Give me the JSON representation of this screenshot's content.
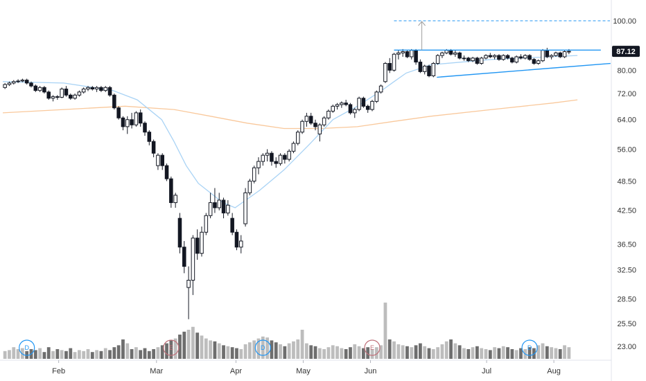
{
  "chart_data": {
    "type": "candlestick",
    "y_axis": {
      "scale": "log",
      "ticks": [
        "100.00",
        "80.00",
        "72.00",
        "64.00",
        "56.00",
        "48.50",
        "42.50",
        "36.50",
        "32.50",
        "28.50",
        "25.50",
        "23.00"
      ],
      "tick_values": [
        100,
        80,
        72,
        64,
        56,
        48.5,
        42.5,
        36.5,
        32.5,
        28.5,
        25.5,
        23
      ],
      "range": [
        22,
        108
      ]
    },
    "x_axis": {
      "months": [
        "Feb",
        "Mar",
        "Apr",
        "May",
        "Jun",
        "Jul",
        "Aug"
      ],
      "month_positions": [
        13,
        29,
        42,
        53,
        64,
        83,
        94
      ]
    },
    "last_price": {
      "label": "87.12",
      "value": 87.12,
      "color": "#131722"
    },
    "target_line": {
      "value": 100,
      "color": "#2196F3"
    },
    "resistance_line": {
      "value": 87.6,
      "from": 64,
      "to": 101,
      "color": "#2196F3"
    },
    "support_line": {
      "from_value": 77.5,
      "to_value": 82.5,
      "from": 71,
      "to": 101,
      "color": "#2196F3"
    },
    "projection_arrow": {
      "x": 69,
      "from_value": 87.6,
      "to_value": 100
    },
    "sma_short": {
      "color": "#A9D3F5",
      "points": [
        [
          0,
          76
        ],
        [
          10,
          75.5
        ],
        [
          18,
          73
        ],
        [
          22,
          70
        ],
        [
          26,
          64
        ],
        [
          28,
          58
        ],
        [
          30,
          52
        ],
        [
          32,
          48
        ],
        [
          36,
          44
        ],
        [
          38,
          43
        ],
        [
          42,
          46.5
        ],
        [
          46,
          51
        ],
        [
          50,
          57
        ],
        [
          54,
          64
        ],
        [
          58,
          68
        ],
        [
          62,
          73
        ],
        [
          64,
          76
        ],
        [
          66,
          79
        ],
        [
          70,
          82
        ],
        [
          80,
          84
        ],
        [
          94,
          85.5
        ]
      ]
    },
    "sma_long": {
      "color": "#F9C89B",
      "points": [
        [
          0,
          66
        ],
        [
          10,
          67
        ],
        [
          20,
          68
        ],
        [
          28,
          67
        ],
        [
          34,
          65
        ],
        [
          40,
          63
        ],
        [
          46,
          61.5
        ],
        [
          52,
          61.5
        ],
        [
          58,
          62
        ],
        [
          64,
          63.5
        ],
        [
          70,
          65
        ],
        [
          80,
          67
        ],
        [
          90,
          69
        ],
        [
          94,
          70
        ]
      ]
    },
    "candles": [
      {
        "o": 74,
        "h": 75.5,
        "l": 73.5,
        "c": 75
      },
      {
        "o": 75,
        "h": 76,
        "l": 74.5,
        "c": 75.5
      },
      {
        "o": 75.5,
        "h": 76.5,
        "l": 75,
        "c": 76
      },
      {
        "o": 76,
        "h": 76.8,
        "l": 75.5,
        "c": 76.2
      },
      {
        "o": 76.2,
        "h": 77,
        "l": 75.8,
        "c": 76.5
      },
      {
        "o": 76.5,
        "h": 77,
        "l": 75,
        "c": 75.5
      },
      {
        "o": 75.5,
        "h": 76,
        "l": 74,
        "c": 74.5
      },
      {
        "o": 74.5,
        "h": 75,
        "l": 72.5,
        "c": 73
      },
      {
        "o": 73,
        "h": 74.5,
        "l": 72.5,
        "c": 74
      },
      {
        "o": 74,
        "h": 74.5,
        "l": 72,
        "c": 72.5
      },
      {
        "o": 72.5,
        "h": 73,
        "l": 70,
        "c": 70.5
      },
      {
        "o": 70.5,
        "h": 71.5,
        "l": 69.5,
        "c": 71
      },
      {
        "o": 71,
        "h": 71.5,
        "l": 70,
        "c": 70.8
      },
      {
        "o": 70.8,
        "h": 74,
        "l": 70.5,
        "c": 73.5
      },
      {
        "o": 73.5,
        "h": 74.5,
        "l": 71,
        "c": 71.5
      },
      {
        "o": 71.5,
        "h": 72,
        "l": 70,
        "c": 70.5
      },
      {
        "o": 70.5,
        "h": 72,
        "l": 70,
        "c": 71.5
      },
      {
        "o": 71.5,
        "h": 73,
        "l": 71,
        "c": 72.5
      },
      {
        "o": 72.5,
        "h": 74,
        "l": 72,
        "c": 73.5
      },
      {
        "o": 73.5,
        "h": 74.5,
        "l": 72.8,
        "c": 74
      },
      {
        "o": 74,
        "h": 74.5,
        "l": 73,
        "c": 73.5
      },
      {
        "o": 73.5,
        "h": 74.5,
        "l": 72.5,
        "c": 74
      },
      {
        "o": 74,
        "h": 74.5,
        "l": 72.5,
        "c": 73
      },
      {
        "o": 73,
        "h": 74.5,
        "l": 72.5,
        "c": 74
      },
      {
        "o": 74,
        "h": 74.5,
        "l": 71,
        "c": 71.5
      },
      {
        "o": 71.5,
        "h": 72,
        "l": 67,
        "c": 67.5
      },
      {
        "o": 67.5,
        "h": 68,
        "l": 64,
        "c": 64.5
      },
      {
        "o": 64.5,
        "h": 65,
        "l": 61,
        "c": 62
      },
      {
        "o": 62,
        "h": 65,
        "l": 60,
        "c": 64
      },
      {
        "o": 64,
        "h": 66,
        "l": 61.5,
        "c": 62.5
      },
      {
        "o": 62.5,
        "h": 66.5,
        "l": 62,
        "c": 66
      },
      {
        "o": 66,
        "h": 67,
        "l": 62,
        "c": 63
      },
      {
        "o": 63,
        "h": 63.5,
        "l": 59.5,
        "c": 60.5
      },
      {
        "o": 60.5,
        "h": 61,
        "l": 57,
        "c": 58
      },
      {
        "o": 58,
        "h": 58.5,
        "l": 54,
        "c": 55
      },
      {
        "o": 52,
        "h": 55,
        "l": 51,
        "c": 54.5
      },
      {
        "o": 54.5,
        "h": 55,
        "l": 51,
        "c": 52
      },
      {
        "o": 52,
        "h": 52.5,
        "l": 48.5,
        "c": 49
      },
      {
        "o": 49,
        "h": 49.5,
        "l": 43,
        "c": 44
      },
      {
        "o": 44,
        "h": 46,
        "l": 43,
        "c": 45.5
      },
      {
        "o": 41,
        "h": 42,
        "l": 35,
        "c": 36
      },
      {
        "o": 36,
        "h": 37,
        "l": 32,
        "c": 33
      },
      {
        "o": 30,
        "h": 33,
        "l": 26,
        "c": 31
      },
      {
        "o": 31,
        "h": 38,
        "l": 29,
        "c": 37.5
      },
      {
        "o": 37.5,
        "h": 39,
        "l": 34,
        "c": 35
      },
      {
        "o": 35,
        "h": 39.5,
        "l": 34.5,
        "c": 38.5
      },
      {
        "o": 38.5,
        "h": 42,
        "l": 38,
        "c": 41.5
      },
      {
        "o": 41.5,
        "h": 46,
        "l": 41,
        "c": 44
      },
      {
        "o": 44,
        "h": 47,
        "l": 42,
        "c": 43
      },
      {
        "o": 43,
        "h": 46,
        "l": 42.5,
        "c": 44.5
      },
      {
        "o": 44.5,
        "h": 45,
        "l": 41,
        "c": 42
      },
      {
        "o": 42,
        "h": 44.5,
        "l": 41.5,
        "c": 43.5
      },
      {
        "o": 41,
        "h": 42,
        "l": 38,
        "c": 38.5
      },
      {
        "o": 38.5,
        "h": 39,
        "l": 35.5,
        "c": 36
      },
      {
        "o": 36,
        "h": 38,
        "l": 35,
        "c": 37
      },
      {
        "o": 40,
        "h": 47,
        "l": 39.5,
        "c": 46
      },
      {
        "o": 46,
        "h": 49,
        "l": 45.5,
        "c": 48.5
      },
      {
        "o": 48.5,
        "h": 52,
        "l": 48,
        "c": 51.5
      },
      {
        "o": 51.5,
        "h": 54,
        "l": 50,
        "c": 53
      },
      {
        "o": 53,
        "h": 55,
        "l": 52,
        "c": 54.5
      },
      {
        "o": 54.5,
        "h": 56,
        "l": 53,
        "c": 55
      },
      {
        "o": 55,
        "h": 55.5,
        "l": 52,
        "c": 53
      },
      {
        "o": 53,
        "h": 54,
        "l": 51.5,
        "c": 52.5
      },
      {
        "o": 52.5,
        "h": 55,
        "l": 52,
        "c": 54.5
      },
      {
        "o": 54.5,
        "h": 55,
        "l": 52.5,
        "c": 53.5
      },
      {
        "o": 53.5,
        "h": 56,
        "l": 53,
        "c": 55.5
      },
      {
        "o": 55.5,
        "h": 58,
        "l": 55,
        "c": 57.5
      },
      {
        "o": 57.5,
        "h": 61,
        "l": 57,
        "c": 60.5
      },
      {
        "o": 60.5,
        "h": 64,
        "l": 60,
        "c": 63.5
      },
      {
        "o": 63.5,
        "h": 66,
        "l": 62,
        "c": 65
      },
      {
        "o": 65,
        "h": 66,
        "l": 62.5,
        "c": 63
      },
      {
        "o": 63,
        "h": 64,
        "l": 61,
        "c": 62
      },
      {
        "o": 60,
        "h": 63,
        "l": 58,
        "c": 62.5
      },
      {
        "o": 62.5,
        "h": 65,
        "l": 62,
        "c": 64.5
      },
      {
        "o": 64.5,
        "h": 67,
        "l": 64,
        "c": 66.5
      },
      {
        "o": 66.5,
        "h": 68.5,
        "l": 66,
        "c": 68
      },
      {
        "o": 68,
        "h": 69,
        "l": 67,
        "c": 68.5
      },
      {
        "o": 68.5,
        "h": 69.5,
        "l": 67.5,
        "c": 69
      },
      {
        "o": 69,
        "h": 70,
        "l": 68,
        "c": 68.5
      },
      {
        "o": 68.5,
        "h": 69,
        "l": 65.5,
        "c": 66
      },
      {
        "o": 66,
        "h": 67.5,
        "l": 64.5,
        "c": 67
      },
      {
        "o": 67,
        "h": 71,
        "l": 66.5,
        "c": 70.5
      },
      {
        "o": 70.5,
        "h": 71,
        "l": 67.5,
        "c": 68
      },
      {
        "o": 68,
        "h": 68.5,
        "l": 66,
        "c": 67
      },
      {
        "o": 67,
        "h": 70,
        "l": 66.5,
        "c": 69.5
      },
      {
        "o": 69.5,
        "h": 73,
        "l": 69,
        "c": 72.5
      },
      {
        "o": 72.5,
        "h": 75,
        "l": 72,
        "c": 74.5
      },
      {
        "o": 76,
        "h": 83,
        "l": 75.5,
        "c": 82.5
      },
      {
        "o": 82.5,
        "h": 84.5,
        "l": 79,
        "c": 80
      },
      {
        "o": 80,
        "h": 86.5,
        "l": 79.5,
        "c": 86
      },
      {
        "o": 86,
        "h": 87.5,
        "l": 84,
        "c": 86.5
      },
      {
        "o": 86.5,
        "h": 88,
        "l": 85,
        "c": 87
      },
      {
        "o": 87,
        "h": 87.5,
        "l": 84.5,
        "c": 85
      },
      {
        "o": 85,
        "h": 88,
        "l": 84,
        "c": 87.5
      },
      {
        "o": 87.5,
        "h": 88,
        "l": 82,
        "c": 83
      },
      {
        "o": 83,
        "h": 84,
        "l": 79,
        "c": 79.5
      },
      {
        "o": 79.5,
        "h": 82,
        "l": 78.5,
        "c": 81.5
      },
      {
        "o": 81.5,
        "h": 82,
        "l": 77.5,
        "c": 78
      },
      {
        "o": 78,
        "h": 83,
        "l": 77.5,
        "c": 82.5
      },
      {
        "o": 82.5,
        "h": 86,
        "l": 82,
        "c": 85.5
      },
      {
        "o": 85.5,
        "h": 87,
        "l": 84.5,
        "c": 86.5
      },
      {
        "o": 86.5,
        "h": 88,
        "l": 86,
        "c": 87.5
      },
      {
        "o": 87.5,
        "h": 88,
        "l": 85.5,
        "c": 86
      },
      {
        "o": 86,
        "h": 87.5,
        "l": 85,
        "c": 86.5
      },
      {
        "o": 86.5,
        "h": 87,
        "l": 84,
        "c": 84.5
      },
      {
        "o": 84.5,
        "h": 85.5,
        "l": 83.5,
        "c": 84.5
      },
      {
        "o": 84.5,
        "h": 85,
        "l": 83,
        "c": 83.5
      },
      {
        "o": 83.5,
        "h": 85,
        "l": 83,
        "c": 84.5
      },
      {
        "o": 84.5,
        "h": 85,
        "l": 82,
        "c": 82.5
      },
      {
        "o": 82.5,
        "h": 85,
        "l": 82,
        "c": 84.5
      },
      {
        "o": 84.5,
        "h": 86,
        "l": 84,
        "c": 85.5
      },
      {
        "o": 85.5,
        "h": 86.5,
        "l": 84.5,
        "c": 85
      },
      {
        "o": 85,
        "h": 86,
        "l": 84,
        "c": 85.5
      },
      {
        "o": 85.5,
        "h": 86,
        "l": 83.5,
        "c": 84
      },
      {
        "o": 84,
        "h": 86,
        "l": 83.5,
        "c": 85.5
      },
      {
        "o": 85.5,
        "h": 86,
        "l": 84,
        "c": 84.5
      },
      {
        "o": 84.5,
        "h": 85,
        "l": 82.5,
        "c": 83
      },
      {
        "o": 83,
        "h": 85.5,
        "l": 82.5,
        "c": 85
      },
      {
        "o": 85,
        "h": 86,
        "l": 84,
        "c": 84.5
      },
      {
        "o": 84.5,
        "h": 86,
        "l": 84,
        "c": 85.5
      },
      {
        "o": 85.5,
        "h": 86,
        "l": 83.5,
        "c": 84
      },
      {
        "o": 84,
        "h": 84.5,
        "l": 82,
        "c": 82.5
      },
      {
        "o": 82.5,
        "h": 84,
        "l": 82,
        "c": 83.5
      },
      {
        "o": 83.5,
        "h": 88,
        "l": 83,
        "c": 87.5
      },
      {
        "o": 87.5,
        "h": 88.5,
        "l": 84.5,
        "c": 85
      },
      {
        "o": 85,
        "h": 86,
        "l": 84,
        "c": 85.5
      },
      {
        "o": 85.5,
        "h": 87,
        "l": 85,
        "c": 86.5
      },
      {
        "o": 86.5,
        "h": 87,
        "l": 84.5,
        "c": 85
      },
      {
        "o": 85,
        "h": 87.5,
        "l": 84.5,
        "c": 87
      },
      {
        "o": 87,
        "h": 88,
        "l": 86,
        "c": 87.12
      }
    ],
    "volume": {
      "max": 100,
      "values": [
        8,
        9,
        12,
        10,
        11,
        8,
        10,
        9,
        11,
        7,
        12,
        8,
        10,
        9,
        8,
        11,
        7,
        9,
        8,
        10,
        7,
        9,
        8,
        11,
        9,
        12,
        14,
        20,
        16,
        10,
        12,
        9,
        11,
        8,
        10,
        12,
        14,
        16,
        19,
        21,
        25,
        28,
        30,
        33,
        27,
        24,
        21,
        19,
        18,
        16,
        14,
        13,
        12,
        11,
        10,
        15,
        17,
        19,
        21,
        23,
        22,
        19,
        17,
        15,
        13,
        16,
        18,
        20,
        30,
        16,
        14,
        13,
        11,
        10,
        12,
        14,
        13,
        11,
        10,
        12,
        15,
        13,
        11,
        12,
        10,
        12,
        14,
        58,
        20,
        18,
        15,
        14,
        13,
        12,
        14,
        16,
        13,
        11,
        10,
        12,
        15,
        18,
        20,
        16,
        14,
        11,
        10,
        12,
        13,
        11,
        10,
        9,
        12,
        11,
        13,
        12,
        10,
        9,
        11,
        10,
        12,
        11,
        14,
        16,
        13,
        12,
        11,
        10,
        14,
        12
      ],
      "dark_color": "#6E6E6E",
      "light_color": "#BDBDBD"
    },
    "events": [
      {
        "label": "D",
        "index": 5,
        "color": "#2196F3"
      },
      {
        "label": "E",
        "index": 38,
        "color": "#C0707A"
      },
      {
        "label": "D",
        "index": 59,
        "color": "#2196F3"
      },
      {
        "label": "E",
        "index": 84,
        "color": "#C0707A"
      },
      {
        "label": "D",
        "index": 120,
        "color": "#2196F3"
      }
    ]
  }
}
